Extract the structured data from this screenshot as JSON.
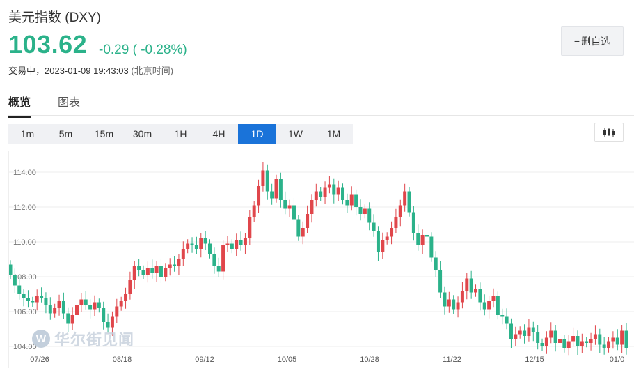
{
  "header": {
    "title": "美元指数 (DXY)",
    "price": "103.62",
    "change": "-0.29 ( -0.28%)",
    "status_label": "交易中，",
    "datetime": "2023-01-09 19:43:03",
    "timezone": "(北京时间)",
    "watch_button_icon": "minus-icon",
    "watch_button_label": "删自选"
  },
  "tabs": [
    {
      "label": "概览",
      "active": true
    },
    {
      "label": "图表",
      "active": false
    }
  ],
  "periods": [
    "1m",
    "5m",
    "15m",
    "30m",
    "1H",
    "4H",
    "1D",
    "1W",
    "1M"
  ],
  "active_period": "1D",
  "colors": {
    "up": "#e0464b",
    "down": "#2bb28a",
    "accent": "#1a73d9",
    "grid": "#ececec"
  },
  "watermark": {
    "text": "华尔街见闻"
  },
  "chart_data": {
    "type": "candlestick",
    "ylim": [
      103.6,
      115.2
    ],
    "yticks": [
      "114.00",
      "112.00",
      "110.00",
      "108.00",
      "106.00",
      "104.00"
    ],
    "xticks": [
      "07/26",
      "08/18",
      "09/12",
      "10/05",
      "10/28",
      "11/22",
      "12/15",
      "01/0"
    ],
    "grid": true,
    "closes": [
      108.1,
      107.5,
      107.0,
      106.8,
      106.6,
      106.5,
      106.9,
      106.8,
      106.4,
      105.9,
      106.2,
      106.6,
      105.9,
      105.3,
      105.8,
      106.4,
      106.7,
      106.4,
      106.1,
      106.5,
      106.2,
      105.4,
      105.1,
      105.7,
      106.3,
      106.6,
      107.0,
      107.8,
      108.6,
      108.4,
      108.1,
      108.5,
      108.2,
      108.6,
      108.0,
      108.5,
      108.7,
      108.6,
      109.0,
      109.6,
      109.9,
      109.8,
      109.6,
      110.2,
      109.9,
      109.3,
      108.6,
      108.3,
      109.8,
      109.9,
      109.6,
      110.1,
      109.8,
      110.2,
      111.4,
      112.1,
      113.2,
      114.1,
      112.9,
      112.5,
      113.6,
      112.4,
      111.9,
      112.1,
      111.3,
      110.3,
      110.8,
      111.6,
      112.4,
      112.9,
      112.6,
      113.1,
      113.3,
      112.7,
      113.1,
      112.4,
      112.1,
      112.7,
      112.0,
      111.6,
      111.9,
      111.1,
      110.6,
      109.4,
      110.1,
      110.3,
      110.8,
      111.4,
      112.1,
      112.9,
      111.7,
      110.5,
      109.8,
      110.4,
      110.3,
      109.1,
      108.4,
      107.1,
      106.3,
      106.7,
      106.1,
      106.5,
      107.2,
      107.9,
      107.1,
      107.3,
      106.5,
      106.1,
      106.6,
      106.9,
      105.8,
      105.7,
      105.3,
      104.4,
      104.7,
      104.9,
      104.6,
      105.1,
      104.8,
      104.2,
      104.0,
      104.5,
      104.9,
      104.2,
      104.4,
      103.9,
      104.3,
      104.6,
      104.0,
      104.3,
      104.2,
      104.4,
      104.7,
      104.1,
      103.9,
      104.3,
      104.5,
      104.1,
      104.9,
      103.9
    ]
  }
}
